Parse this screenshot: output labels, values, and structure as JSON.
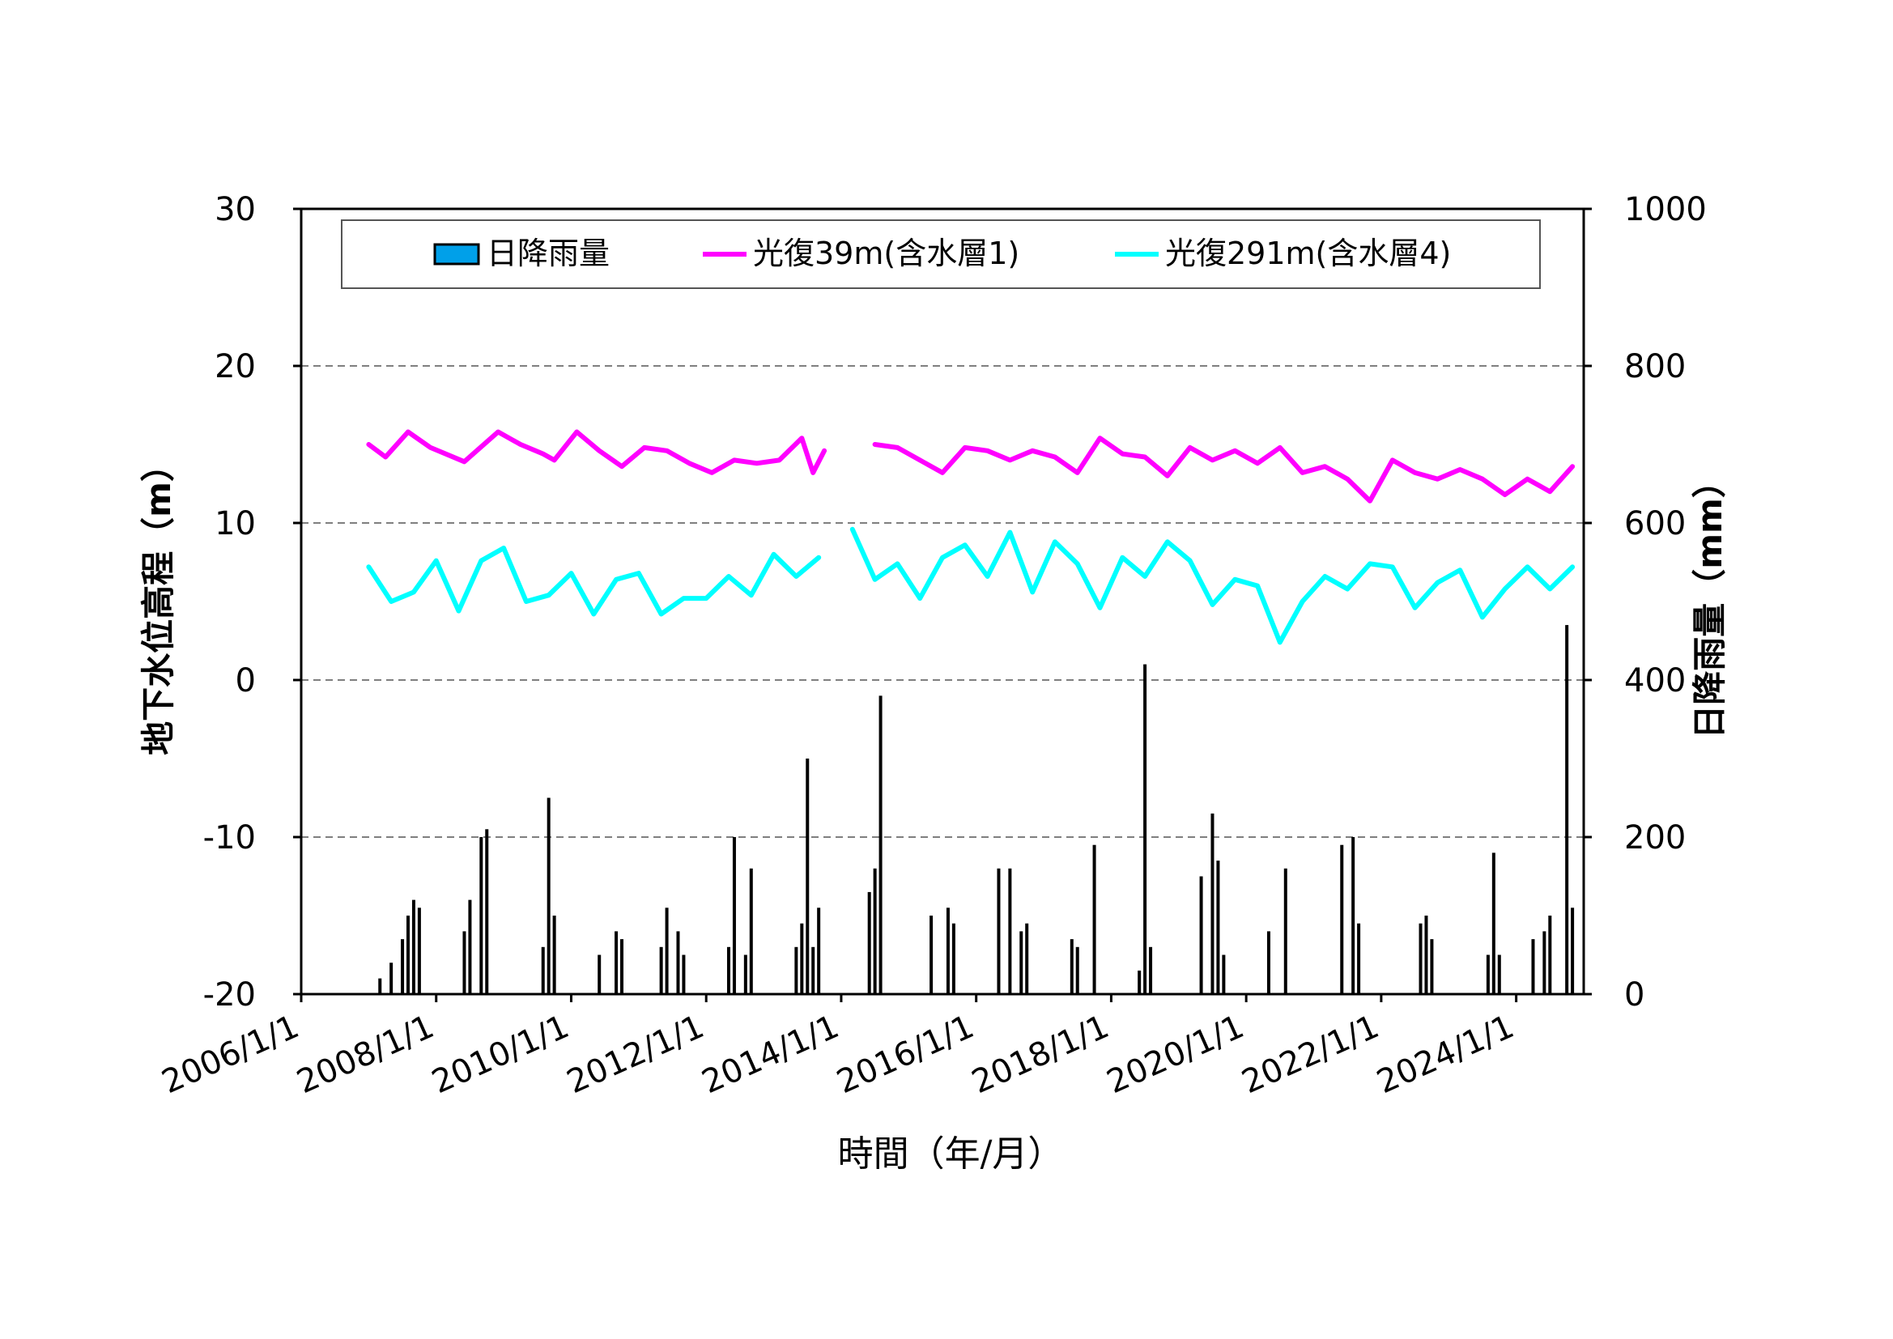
{
  "chart_data": {
    "type": "line",
    "title": "",
    "xlabel": "時間（年/月）",
    "ylabel_left": "地下水位高程（m）",
    "ylabel_right": "日降雨量（mm）",
    "x_range": [
      "2006/1/1",
      "2025/1/1"
    ],
    "x_ticks": [
      "2006/1/1",
      "2008/1/1",
      "2010/1/1",
      "2012/1/1",
      "2014/1/1",
      "2016/1/1",
      "2018/1/1",
      "2020/1/1",
      "2022/1/1",
      "2024/1/1"
    ],
    "ylim_left": [
      -20,
      30
    ],
    "yticks_left": [
      "30",
      "20",
      "10",
      "0",
      "-10",
      "-20"
    ],
    "ylim_right": [
      0,
      1000
    ],
    "yticks_right": [
      "1000",
      "800",
      "600",
      "400",
      "200",
      "0"
    ],
    "grid": "horizontal-dashed",
    "legend_position": "top",
    "series": [
      {
        "name": "日降雨量",
        "kind": "bar",
        "axis": "right",
        "color": "#000000",
        "legend_fill": "#00a0e9",
        "x": [
          "2007/03",
          "2007/05",
          "2007/07",
          "2007/08",
          "2007/09",
          "2007/10",
          "2008/06",
          "2008/07",
          "2008/09",
          "2008/10",
          "2009/08",
          "2009/09",
          "2009/10",
          "2010/06",
          "2010/09",
          "2010/10",
          "2011/05",
          "2011/06",
          "2011/08",
          "2011/09",
          "2012/05",
          "2012/06",
          "2012/08",
          "2012/09",
          "2013/05",
          "2013/06",
          "2013/07",
          "2013/08",
          "2013/09",
          "2014/06",
          "2014/07",
          "2014/08",
          "2015/05",
          "2015/08",
          "2015/09",
          "2016/05",
          "2016/07",
          "2016/09",
          "2016/10",
          "2017/06",
          "2017/07",
          "2017/10",
          "2018/06",
          "2018/07",
          "2018/08",
          "2019/05",
          "2019/07",
          "2019/08",
          "2019/09",
          "2020/05",
          "2020/08",
          "2021/06",
          "2021/08",
          "2021/09",
          "2022/08",
          "2022/09",
          "2022/10",
          "2023/08",
          "2023/09",
          "2023/10",
          "2024/04",
          "2024/06",
          "2024/07",
          "2024/10",
          "2024/11"
        ],
        "values": [
          20,
          40,
          70,
          100,
          120,
          110,
          80,
          120,
          200,
          210,
          60,
          250,
          100,
          50,
          80,
          70,
          60,
          110,
          80,
          50,
          60,
          200,
          50,
          160,
          60,
          90,
          300,
          60,
          110,
          130,
          160,
          380,
          100,
          110,
          90,
          160,
          160,
          80,
          90,
          70,
          60,
          190,
          30,
          420,
          60,
          150,
          230,
          170,
          50,
          80,
          160,
          190,
          200,
          90,
          90,
          100,
          70,
          50,
          180,
          50,
          70,
          80,
          100,
          470,
          110
        ]
      },
      {
        "name": "光復39m(含水層1)",
        "kind": "line",
        "axis": "left",
        "color": "#ff00ff",
        "x": [
          "2007/01",
          "2007/04",
          "2007/08",
          "2007/12",
          "2008/06",
          "2008/12",
          "2009/04",
          "2009/08",
          "2009/10",
          "2010/02",
          "2010/06",
          "2010/10",
          "2011/02",
          "2011/06",
          "2011/10",
          "2012/02",
          "2012/06",
          "2012/10",
          "2013/02",
          "2013/06",
          "2013/08",
          "2013/10",
          "2014/03",
          "2014/07",
          "2014/11",
          "2015/03",
          "2015/07",
          "2015/11",
          "2016/03",
          "2016/07",
          "2016/11",
          "2017/03",
          "2017/07",
          "2017/11",
          "2018/03",
          "2018/07",
          "2018/11",
          "2019/03",
          "2019/07",
          "2019/11",
          "2020/03",
          "2020/07",
          "2020/11",
          "2021/03",
          "2021/07",
          "2021/11",
          "2022/03",
          "2022/07",
          "2022/11",
          "2023/03",
          "2023/07",
          "2023/11",
          "2024/03",
          "2024/07",
          "2024/11"
        ],
        "values": [
          15.0,
          14.2,
          15.8,
          14.8,
          13.9,
          15.8,
          15.0,
          14.4,
          14.0,
          15.8,
          14.6,
          13.6,
          14.8,
          14.6,
          13.8,
          13.2,
          14.0,
          13.8,
          14.0,
          15.4,
          13.2,
          14.6,
          null,
          15.0,
          14.8,
          14.0,
          13.2,
          14.8,
          14.6,
          14.0,
          14.6,
          14.2,
          13.2,
          15.4,
          14.4,
          14.2,
          13.0,
          14.8,
          14.0,
          14.6,
          13.8,
          14.8,
          13.2,
          13.6,
          12.8,
          11.4,
          14.0,
          13.2,
          12.8,
          13.4,
          12.8,
          11.8,
          12.8,
          12.0,
          13.6
        ]
      },
      {
        "name": "光復291m(含水層4)",
        "kind": "line",
        "axis": "left",
        "color": "#00ffff",
        "x": [
          "2007/01",
          "2007/05",
          "2007/09",
          "2008/01",
          "2008/05",
          "2008/09",
          "2009/01",
          "2009/05",
          "2009/09",
          "2010/01",
          "2010/05",
          "2010/09",
          "2011/01",
          "2011/05",
          "2011/09",
          "2012/01",
          "2012/05",
          "2012/09",
          "2013/01",
          "2013/05",
          "2013/09",
          "2013/12",
          "2014/03",
          "2014/07",
          "2014/11",
          "2015/03",
          "2015/07",
          "2015/11",
          "2016/03",
          "2016/07",
          "2016/11",
          "2017/03",
          "2017/07",
          "2017/11",
          "2018/03",
          "2018/07",
          "2018/11",
          "2019/03",
          "2019/07",
          "2019/11",
          "2020/03",
          "2020/07",
          "2020/11",
          "2021/03",
          "2021/07",
          "2021/11",
          "2022/03",
          "2022/07",
          "2022/11",
          "2023/03",
          "2023/07",
          "2023/11",
          "2024/03",
          "2024/07",
          "2024/11"
        ],
        "values": [
          7.2,
          5.0,
          5.6,
          7.6,
          4.4,
          7.6,
          8.4,
          5.0,
          5.4,
          6.8,
          4.2,
          6.4,
          6.8,
          4.2,
          5.2,
          5.2,
          6.6,
          5.4,
          8.0,
          6.6,
          7.8,
          null,
          9.6,
          6.4,
          7.4,
          5.2,
          7.8,
          8.6,
          6.6,
          9.4,
          5.6,
          8.8,
          7.4,
          4.6,
          7.8,
          6.6,
          8.8,
          7.6,
          4.8,
          6.4,
          6.0,
          2.4,
          5.0,
          6.6,
          5.8,
          7.4,
          7.2,
          4.6,
          6.2,
          7.0,
          4.0,
          5.8,
          7.2,
          5.8,
          7.2
        ]
      }
    ]
  }
}
